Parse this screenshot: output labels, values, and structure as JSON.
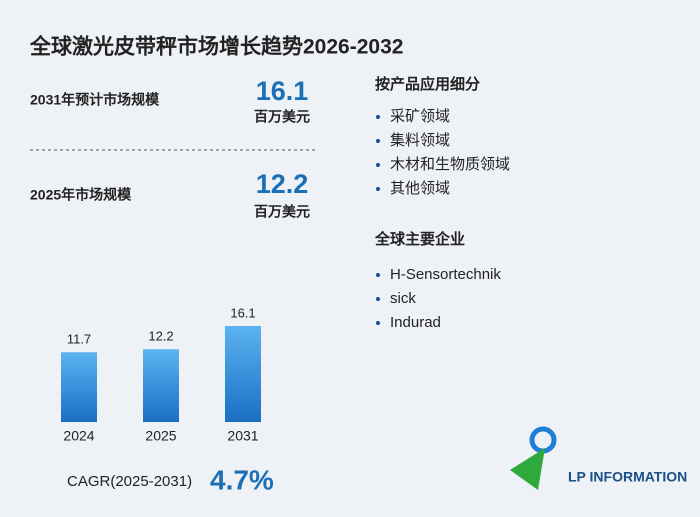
{
  "title": "全球激光皮带秤市场增长趋势2026-2032",
  "stats": [
    {
      "label": "2031年预计市场规模",
      "value": "16.1",
      "unit": "百万美元"
    },
    {
      "label": "2025年市场规模",
      "value": "12.2",
      "unit": "百万美元"
    }
  ],
  "segments": {
    "title": "按产品应用细分",
    "items": [
      "采矿领域",
      "集料领域",
      "木材和生物质领域",
      "其他领域"
    ]
  },
  "companies": {
    "title": "全球主要企业",
    "items": [
      "H-Sensortechnik",
      "sick",
      "Indurad"
    ]
  },
  "chart_data": {
    "type": "bar",
    "categories": [
      "2024",
      "2025",
      "2031"
    ],
    "values": [
      11.7,
      12.2,
      16.1
    ],
    "color": "#1f7fd4"
  },
  "cagr": {
    "label": "CAGR(2025-2031)",
    "value": "4.7%"
  },
  "logo": "LP INFORMATION"
}
